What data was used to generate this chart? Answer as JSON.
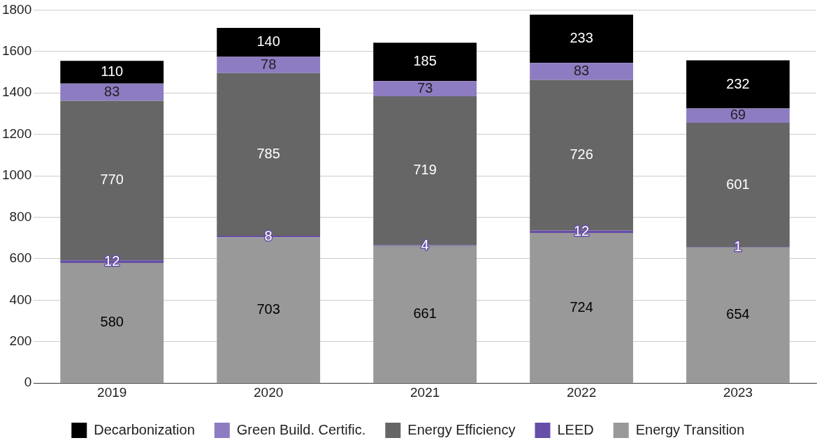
{
  "chart_data": {
    "type": "bar",
    "stacked": true,
    "categories": [
      "2019",
      "2020",
      "2021",
      "2022",
      "2023"
    ],
    "series": [
      {
        "name": "Energy Transition",
        "color": "#999999",
        "values": [
          580,
          703,
          661,
          724,
          654
        ]
      },
      {
        "name": "LEED",
        "color": "#674ea7",
        "values": [
          12,
          8,
          4,
          12,
          1
        ]
      },
      {
        "name": "Energy Efficiency",
        "color": "#666666",
        "values": [
          770,
          785,
          719,
          726,
          601
        ]
      },
      {
        "name": "Green Build. Certific.",
        "color": "#8e7cc3",
        "values": [
          83,
          78,
          73,
          83,
          69
        ]
      },
      {
        "name": "Decarbonization",
        "color": "#000000",
        "values": [
          110,
          140,
          185,
          233,
          232
        ]
      }
    ],
    "ylim": [
      0,
      1800
    ],
    "yticks": [
      0,
      200,
      400,
      600,
      800,
      1000,
      1200,
      1400,
      1600,
      1800
    ],
    "grid": "y",
    "legend": "bottom",
    "data_labels": true
  }
}
